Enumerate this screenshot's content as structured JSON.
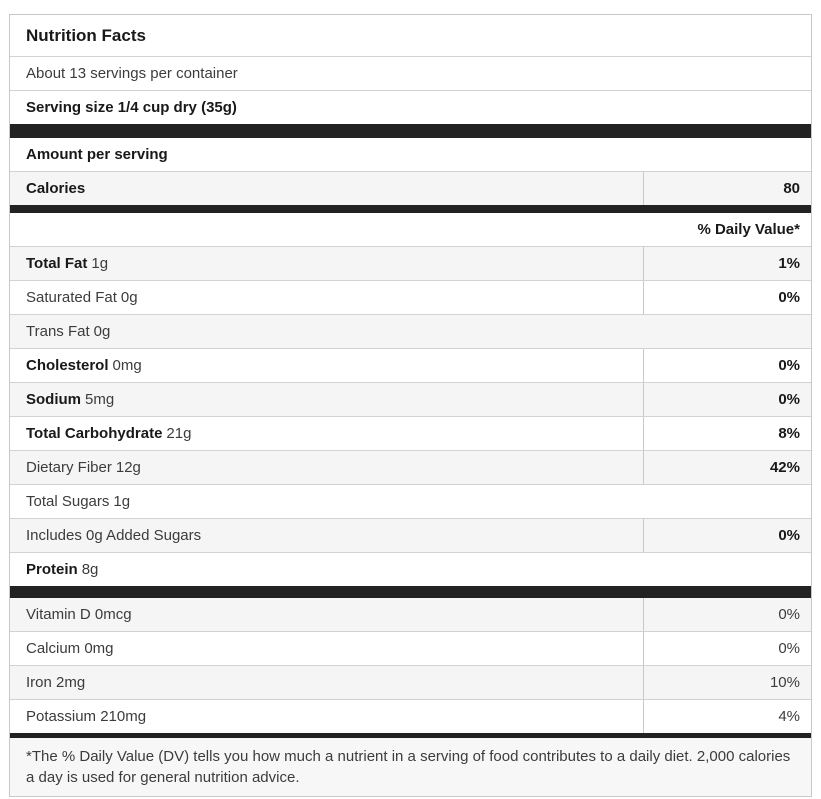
{
  "colors": {
    "separator_bar": "#222222",
    "row_stripe": "#f5f5f5",
    "border": "#c8c8c8",
    "text": "#3c3c3c",
    "text_strong": "#191919",
    "footnote_background": "#f7f7f7"
  },
  "header": {
    "title": "Nutrition Facts",
    "servings_per_container": "About 13 servings per container",
    "serving_size": "Serving size 1/4 cup dry (35g)"
  },
  "calories_section": {
    "amount_per_serving": "Amount per serving",
    "calories_label": "Calories",
    "calories_value": "80"
  },
  "daily_value_header": "% Daily Value*",
  "nutrients": [
    {
      "name": "Total Fat",
      "amount": "1g",
      "dv": "1%",
      "name_bold": true,
      "dv_bold": true,
      "shaded": true,
      "divider": true
    },
    {
      "name": "Saturated Fat",
      "amount": "0g",
      "dv": "0%",
      "name_bold": false,
      "dv_bold": true,
      "shaded": false,
      "divider": true
    },
    {
      "name": "Trans Fat",
      "amount": "0g",
      "dv": "",
      "name_bold": false,
      "dv_bold": false,
      "shaded": true,
      "divider": false
    },
    {
      "name": "Cholesterol",
      "amount": "0mg",
      "dv": "0%",
      "name_bold": true,
      "dv_bold": true,
      "shaded": false,
      "divider": true
    },
    {
      "name": "Sodium",
      "amount": "5mg",
      "dv": "0%",
      "name_bold": true,
      "dv_bold": true,
      "shaded": true,
      "divider": true
    },
    {
      "name": "Total Carbohydrate",
      "amount": "21g",
      "dv": "8%",
      "name_bold": true,
      "dv_bold": true,
      "shaded": false,
      "divider": true
    },
    {
      "name": "Dietary Fiber",
      "amount": "12g",
      "dv": "42%",
      "name_bold": false,
      "dv_bold": true,
      "shaded": true,
      "divider": true
    },
    {
      "name": "Total Sugars",
      "amount": "1g",
      "dv": "",
      "name_bold": false,
      "dv_bold": false,
      "shaded": false,
      "divider": false
    },
    {
      "name": "Includes 0g Added Sugars",
      "amount": "",
      "dv": "0%",
      "name_bold": false,
      "dv_bold": true,
      "shaded": true,
      "divider": true
    },
    {
      "name": "Protein",
      "amount": "8g",
      "dv": "",
      "name_bold": true,
      "dv_bold": false,
      "shaded": false,
      "divider": false
    }
  ],
  "micronutrients": [
    {
      "name": "Vitamin D 0mcg",
      "dv": "0%",
      "shaded": true
    },
    {
      "name": "Calcium 0mg",
      "dv": "0%",
      "shaded": false
    },
    {
      "name": "Iron 2mg",
      "dv": "10%",
      "shaded": true
    },
    {
      "name": "Potassium 210mg",
      "dv": "4%",
      "shaded": false
    }
  ],
  "footnote": "*The % Daily Value (DV) tells you how much a nutrient in a serving of food contributes to a daily diet. 2,000 calories a day is used for general nutrition advice."
}
